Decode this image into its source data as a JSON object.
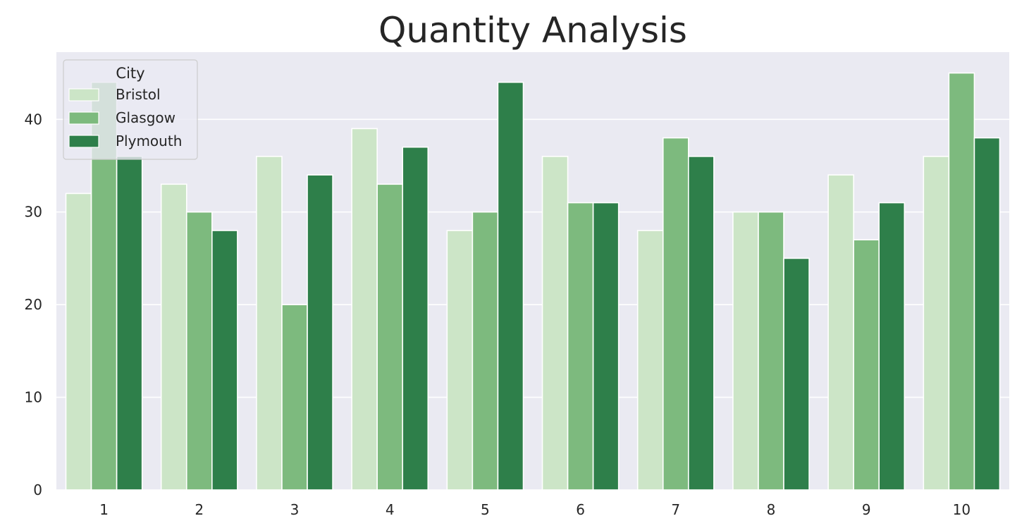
{
  "chart_data": {
    "type": "bar",
    "title": "Quantity Analysis",
    "xlabel": "",
    "ylabel": "",
    "categories": [
      "1",
      "2",
      "3",
      "4",
      "5",
      "6",
      "7",
      "8",
      "9",
      "10"
    ],
    "series": [
      {
        "name": "Bristol",
        "color": "#cce5c7",
        "values": [
          32,
          33,
          36,
          39,
          28,
          36,
          28,
          30,
          34,
          36
        ]
      },
      {
        "name": "Glasgow",
        "color": "#7dba7e",
        "values": [
          44,
          30,
          20,
          33,
          30,
          31,
          38,
          30,
          27,
          45
        ]
      },
      {
        "name": "Plymouth",
        "color": "#2e7f4a",
        "values": [
          36,
          28,
          34,
          37,
          44,
          31,
          36,
          25,
          31,
          38
        ]
      }
    ],
    "ylim": [
      0,
      47.25
    ],
    "yticks": [
      0,
      10,
      20,
      30,
      40
    ],
    "grid": true,
    "legend": {
      "title": "City",
      "position": "upper-left"
    },
    "colors": {
      "plot_background": "#eaeaf2",
      "grid": "#ffffff",
      "text": "#262626",
      "bar_edge": "#ffffff"
    }
  }
}
